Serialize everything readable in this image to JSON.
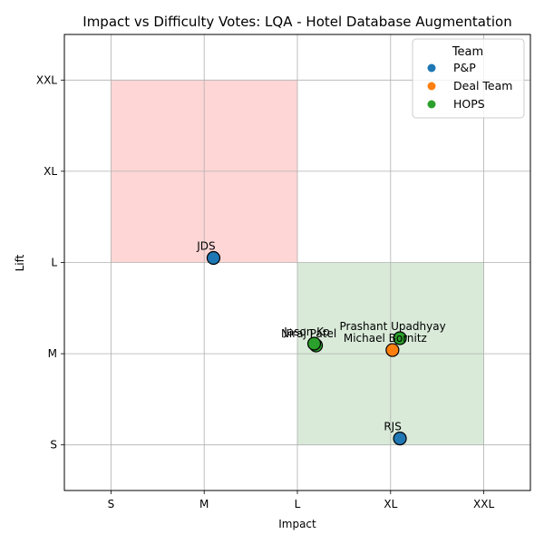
{
  "chart_data": {
    "type": "scatter",
    "title": "Impact vs Difficulty Votes: LQA - Hotel Database Augmentation",
    "xlabel": "Impact",
    "ylabel": "Lift",
    "x_ticks": [
      "S",
      "M",
      "L",
      "XL",
      "XXL"
    ],
    "y_ticks": [
      "S",
      "M",
      "L",
      "XL",
      "XXL"
    ],
    "xlim": [
      0.5,
      5.5
    ],
    "ylim": [
      0.5,
      5.5
    ],
    "grid": true,
    "regions": [
      {
        "x": [
          1,
          3
        ],
        "y": [
          3,
          5
        ],
        "color": "#ffd6d6"
      },
      {
        "x": [
          3,
          5
        ],
        "y": [
          1,
          3
        ],
        "color": "#d9ead9"
      }
    ],
    "legend": {
      "title": "Team",
      "placement": "top-right",
      "entries": [
        {
          "name": "P&P",
          "color": "#1f77b4"
        },
        {
          "name": "Deal Team",
          "color": "#ff7f0e"
        },
        {
          "name": "HOPS",
          "color": "#2ca02c"
        }
      ]
    },
    "points": [
      {
        "label": "JDS",
        "team": "P&P",
        "x": 2.1,
        "y": 3.05
      },
      {
        "label": "RJS",
        "team": "P&P",
        "x": 4.1,
        "y": 1.07
      },
      {
        "label": "Michael Bornitz",
        "team": "Deal Team",
        "x": 4.02,
        "y": 2.04
      },
      {
        "label": "Prashant Upadhyay",
        "team": "HOPS",
        "x": 4.1,
        "y": 2.17
      },
      {
        "label": "Niraj Patel",
        "team": "HOPS",
        "x": 3.2,
        "y": 2.09
      },
      {
        "label": "Jason Ko",
        "team": "HOPS",
        "x": 3.18,
        "y": 2.11
      }
    ]
  }
}
